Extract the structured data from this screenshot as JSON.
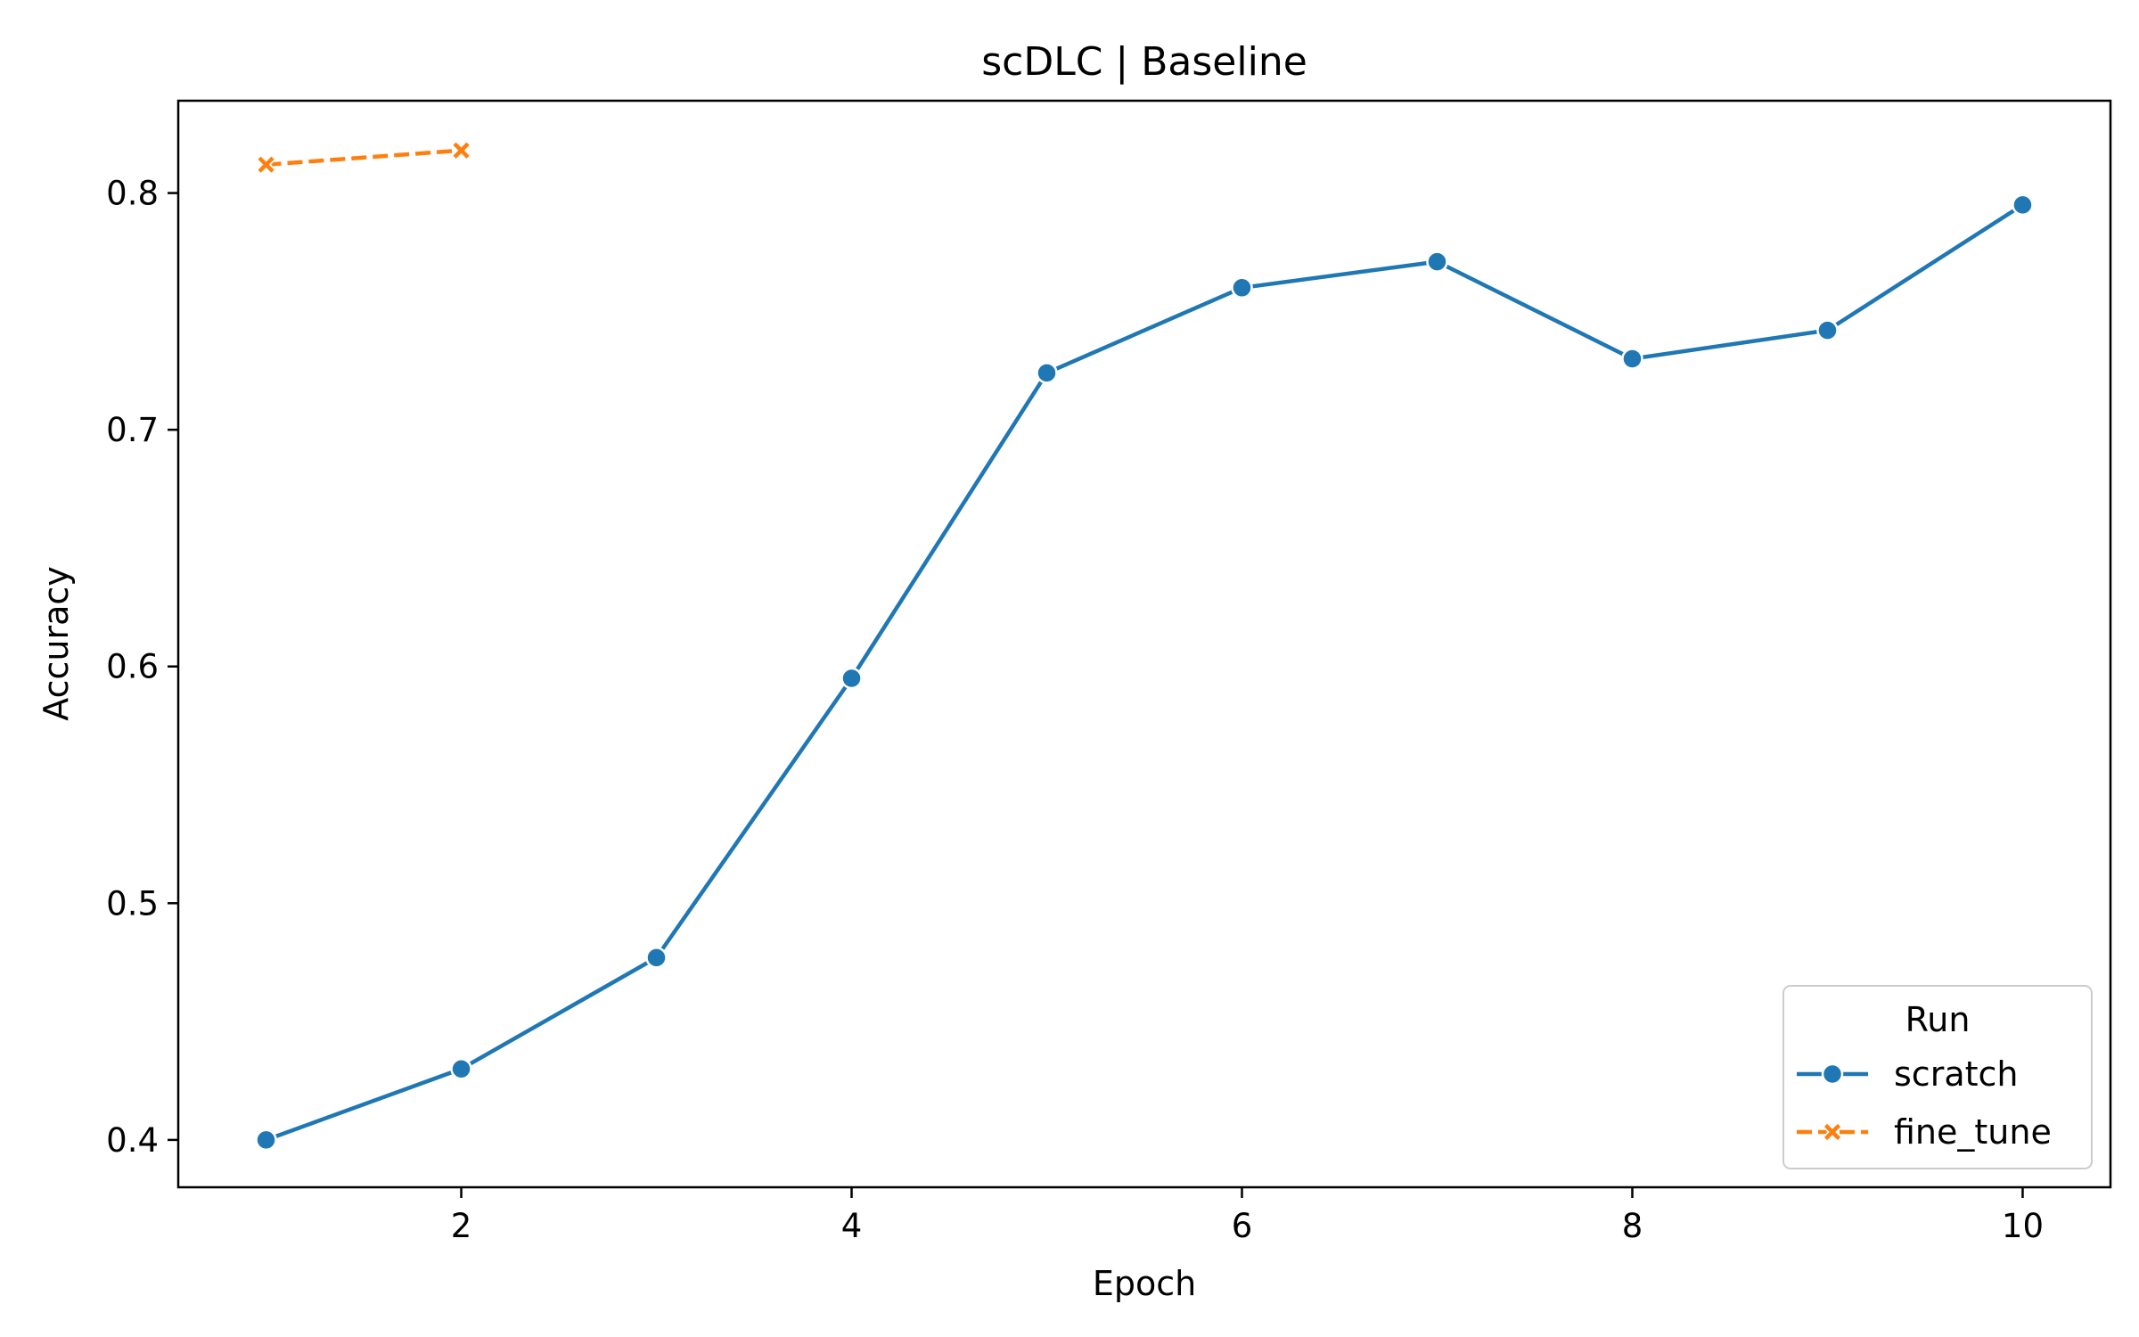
{
  "chart_data": {
    "type": "line",
    "title": "scDLC | Baseline",
    "xlabel": "Epoch",
    "ylabel": "Accuracy",
    "xlim": [
      0.55,
      10.45
    ],
    "ylim": [
      0.38,
      0.839
    ],
    "xticks": [
      2,
      4,
      6,
      8,
      10
    ],
    "yticks": [
      0.4,
      0.5,
      0.6,
      0.7,
      0.8
    ],
    "xtick_labels": [
      "2",
      "4",
      "6",
      "8",
      "10"
    ],
    "ytick_labels": [
      "0.4",
      "0.5",
      "0.6",
      "0.7",
      "0.8"
    ],
    "grid": false,
    "legend": {
      "title": "Run",
      "placement": "lower-right"
    },
    "series": [
      {
        "name": "scratch",
        "color": "#1f77b4",
        "marker": "circle",
        "line_style": "solid",
        "x": [
          1,
          2,
          3,
          4,
          5,
          6,
          7,
          8,
          9,
          10
        ],
        "y": [
          0.4,
          0.43,
          0.477,
          0.595,
          0.724,
          0.76,
          0.771,
          0.73,
          0.742,
          0.795
        ]
      },
      {
        "name": "fine_tune",
        "color": "#ff7f0e",
        "marker": "x",
        "line_style": "dashed",
        "x": [
          1,
          2
        ],
        "y": [
          0.812,
          0.818
        ]
      }
    ]
  }
}
